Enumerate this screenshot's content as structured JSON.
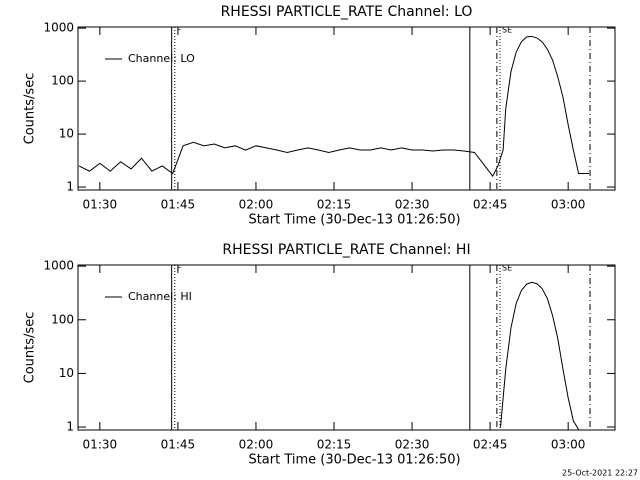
{
  "chart_data": [
    {
      "type": "line",
      "title": "RHESSI PARTICLE_RATE Channel: LO",
      "xlabel": "Start Time (30-Dec-13 01:26:50)",
      "ylabel": "Counts/sec",
      "x": [
        86,
        88,
        90,
        92,
        94,
        96,
        98,
        100,
        102,
        104,
        106,
        108,
        110,
        112,
        114,
        116,
        118,
        120,
        122,
        124,
        126,
        128,
        130,
        132,
        134,
        136,
        138,
        140,
        142,
        144,
        146,
        148,
        150,
        152,
        154,
        156,
        158,
        160,
        162,
        164,
        165.5,
        166.5,
        167.5,
        168,
        169,
        170,
        171,
        172,
        173,
        174,
        175,
        176,
        177,
        178,
        179,
        180,
        181,
        182,
        184
      ],
      "series": [
        {
          "name": "Channel: LO",
          "color": "#000000",
          "values": [
            2.5,
            2,
            2.8,
            2,
            3,
            2.2,
            3.5,
            2,
            2.5,
            1.8,
            6,
            7,
            6,
            6.5,
            5.5,
            6,
            5,
            6,
            5.5,
            5,
            4.5,
            5,
            5.5,
            5,
            4.5,
            5,
            5.5,
            5,
            5,
            5.5,
            5,
            5.5,
            5,
            5,
            4.8,
            5,
            5,
            4.8,
            4.5,
            2.5,
            1.6,
            2.5,
            5,
            30,
            150,
            350,
            550,
            680,
            700,
            650,
            550,
            400,
            250,
            120,
            50,
            15,
            5,
            1.8,
            1.8
          ]
        }
      ],
      "xlim": [
        85.8,
        189
      ],
      "xticks": [
        {
          "value": 90,
          "label": "01:30"
        },
        {
          "value": 105,
          "label": "01:45"
        },
        {
          "value": 120,
          "label": "02:00"
        },
        {
          "value": 135,
          "label": "02:15"
        },
        {
          "value": 150,
          "label": "02:30"
        },
        {
          "value": 165,
          "label": "02:45"
        },
        {
          "value": 180,
          "label": "03:00"
        }
      ],
      "ylim": [
        0.88,
        1050
      ],
      "yticks": [
        1,
        10,
        100,
        1000
      ],
      "log_y": true,
      "legend": "top-left",
      "vlines": [
        {
          "x": 103.8,
          "style": "solid"
        },
        {
          "x": 104.4,
          "style": "dotted",
          "label": "F"
        },
        {
          "x": 161.1,
          "style": "solid"
        },
        {
          "x": 166.3,
          "style": "dashdot"
        },
        {
          "x": 166.9,
          "style": "dotted",
          "label": "SE"
        },
        {
          "x": 184.2,
          "style": "dashdot"
        }
      ]
    },
    {
      "type": "line",
      "title": "RHESSI PARTICLE_RATE Channel: HI",
      "xlabel": "Start Time (30-Dec-13 01:26:50)",
      "ylabel": "Counts/sec",
      "x": [
        167,
        168,
        169,
        170,
        171,
        172,
        173,
        174,
        175,
        176,
        177,
        178,
        179,
        180,
        181,
        182
      ],
      "series": [
        {
          "name": "Channel: HI",
          "color": "#000000",
          "values": [
            1,
            12,
            70,
            200,
            350,
            460,
            500,
            470,
            380,
            250,
            120,
            45,
            12,
            3.5,
            1.3,
            0.9
          ]
        }
      ],
      "xlim": [
        85.8,
        189
      ],
      "xticks": [
        {
          "value": 90,
          "label": "01:30"
        },
        {
          "value": 105,
          "label": "01:45"
        },
        {
          "value": 120,
          "label": "02:00"
        },
        {
          "value": 135,
          "label": "02:15"
        },
        {
          "value": 150,
          "label": "02:30"
        },
        {
          "value": 165,
          "label": "02:45"
        },
        {
          "value": 180,
          "label": "03:00"
        }
      ],
      "ylim": [
        0.88,
        1050
      ],
      "yticks": [
        1,
        10,
        100,
        1000
      ],
      "log_y": true,
      "legend": "top-left",
      "vlines": [
        {
          "x": 103.8,
          "style": "solid"
        },
        {
          "x": 104.4,
          "style": "dotted",
          "label": "F"
        },
        {
          "x": 161.1,
          "style": "solid"
        },
        {
          "x": 166.3,
          "style": "dashdot"
        },
        {
          "x": 166.9,
          "style": "dotted",
          "label": "SE"
        },
        {
          "x": 184.2,
          "style": "dashdot"
        }
      ]
    }
  ],
  "footer": "25-Oct-2021 22:27"
}
